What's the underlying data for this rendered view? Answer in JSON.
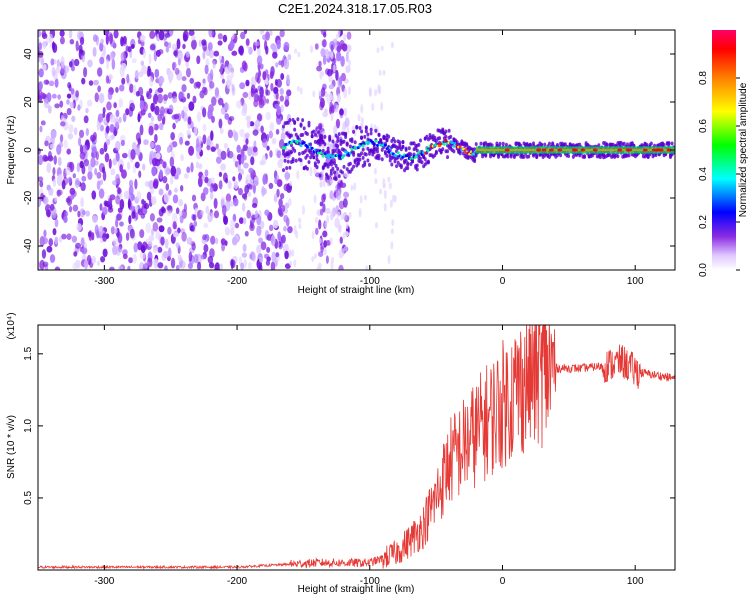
{
  "title": "C2E1.2024.318.17.05.R03",
  "chart_data": [
    {
      "type": "heatmap",
      "xlabel": "Height of straight line (km)",
      "ylabel": "Frequency (Hz)",
      "xlim": [
        -350,
        130
      ],
      "ylim": [
        -50,
        50
      ],
      "x_ticks": [
        -300,
        -200,
        -100,
        0,
        100
      ],
      "y_ticks": [
        -40,
        -20,
        0,
        20,
        40
      ],
      "colorbar": {
        "label": "Normalized spectral amplitude",
        "range": [
          0,
          1
        ],
        "ticks": [
          "0.0",
          "0.2",
          "0.4",
          "0.6",
          "0.8"
        ],
        "colors": [
          "#ffffff",
          "#e0c8ff",
          "#8a2be2",
          "#6600cc",
          "#0000ff",
          "#00ffff",
          "#00ff00",
          "#ffff00",
          "#ff8000",
          "#ff0000",
          "#ff0066"
        ]
      },
      "grid": false
    },
    {
      "type": "line",
      "xlabel": "Height of straight line (km)",
      "ylabel": "SNR (10 * v/v)",
      "y_multiplier": "(x10⁴)",
      "xlim": [
        -350,
        130
      ],
      "ylim": [
        0,
        1.7
      ],
      "x_ticks": [
        -300,
        -200,
        -100,
        0,
        100
      ],
      "y_ticks": [
        "0.5",
        "1.0",
        "1.5"
      ],
      "series_color": "#e53935",
      "series": [
        {
          "x": [
            -350,
            -200,
            -160,
            -140,
            -120,
            -100,
            -90,
            -80,
            -70,
            -60,
            -50,
            -40,
            -30,
            -20,
            -10,
            0,
            10,
            20,
            30,
            40,
            60,
            80,
            90,
            100,
            110,
            130
          ],
          "y": [
            0.02,
            0.02,
            0.04,
            0.05,
            0.05,
            0.05,
            0.08,
            0.12,
            0.2,
            0.3,
            0.5,
            0.75,
            0.85,
            0.95,
            1.05,
            1.15,
            1.25,
            1.33,
            1.38,
            1.4,
            1.4,
            1.42,
            1.45,
            1.38,
            1.36,
            1.33
          ]
        }
      ]
    }
  ]
}
